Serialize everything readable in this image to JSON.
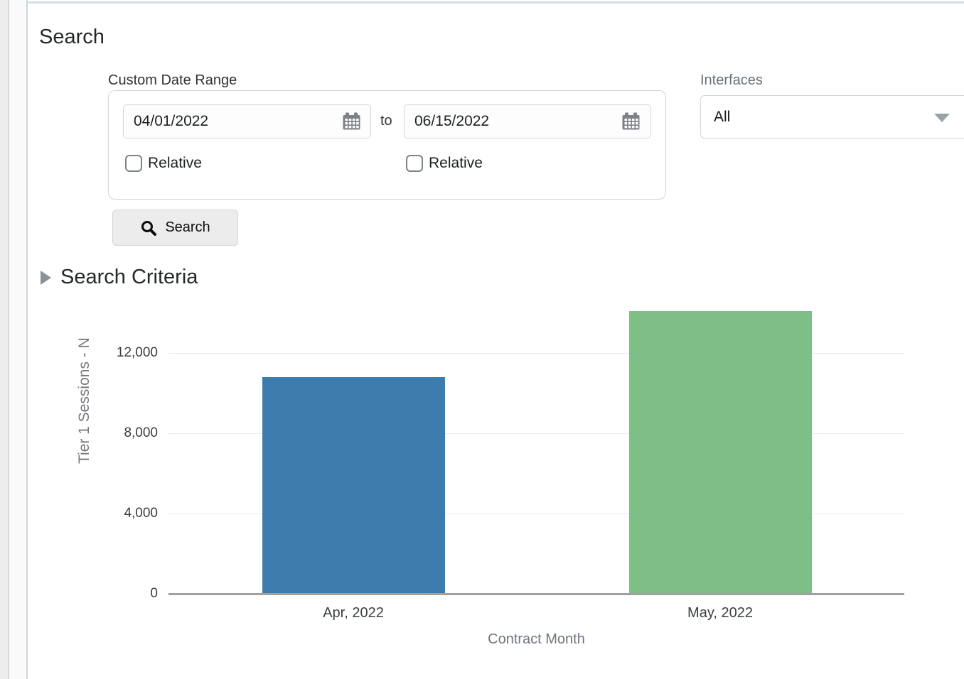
{
  "page": {
    "title": "Search"
  },
  "filters": {
    "date_range": {
      "label": "Custom Date Range",
      "from_value": "04/01/2022",
      "to_separator": "to",
      "to_value": "06/15/2022",
      "relative_from_label": "Relative",
      "relative_from_checked": false,
      "relative_to_label": "Relative",
      "relative_to_checked": false,
      "calendar_icon": "calendar-icon"
    },
    "interfaces": {
      "label": "Interfaces",
      "selected": "All",
      "caret_icon": "chevron-down-icon"
    },
    "search_button": {
      "label": "Search",
      "icon": "search-icon"
    }
  },
  "criteria": {
    "label": "Search Criteria",
    "collapsed": true,
    "icon": "triangle-right-icon"
  },
  "chart_data": {
    "type": "bar",
    "title": "",
    "categories": [
      "Apr, 2022",
      "May, 2022"
    ],
    "values": [
      10800,
      14100
    ],
    "series": [
      {
        "name": "Tier 1 Sessions",
        "values": [
          10800,
          14100
        ]
      }
    ],
    "bar_colors": [
      "#3e7cae",
      "#7dbf86"
    ],
    "xlabel": "Contract Month",
    "ylabel": "Tier 1 Sessions - N",
    "ylabel_truncated": true,
    "yticks": [
      0,
      4000,
      8000,
      12000
    ],
    "ytick_labels": [
      "0",
      "4,000",
      "8,000",
      "12,000"
    ],
    "ylim": [
      0,
      14130
    ],
    "grid": true,
    "legend_position": "none",
    "gridline_color": "#e8ecf1",
    "baseline_color": "#a0a0a0"
  },
  "colors": {
    "card_border": "#ccd5dc",
    "input_border": "#d2d6da",
    "button_bg": "#ececec",
    "bar_blue": "#3e7cae",
    "bar_green": "#7dbf86"
  }
}
